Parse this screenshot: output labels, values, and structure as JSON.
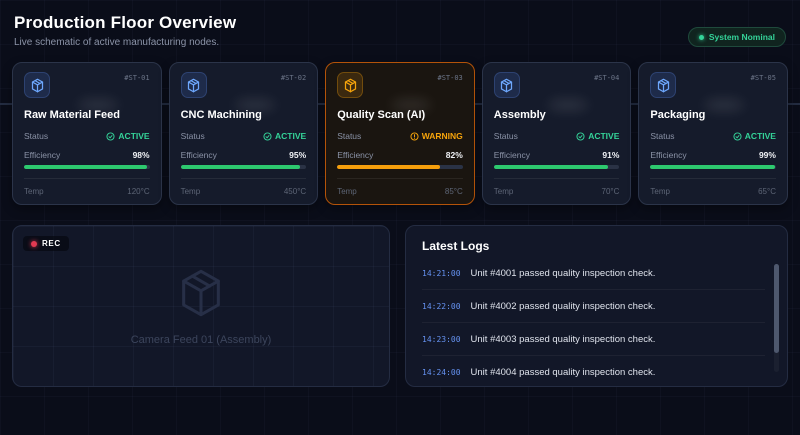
{
  "header": {
    "title": "Production Floor Overview",
    "subtitle": "Live schematic of active manufacturing nodes.",
    "system_badge": "System Nominal"
  },
  "labels": {
    "status": "Status",
    "efficiency": "Efficiency",
    "temp": "Temp"
  },
  "stations": [
    {
      "id": "#ST-01",
      "name": "Raw Material Feed",
      "status": "ACTIVE",
      "state": "active",
      "efficiency": "98%",
      "efficiency_pct": 98,
      "temp": "120°C"
    },
    {
      "id": "#ST-02",
      "name": "CNC Machining",
      "status": "ACTIVE",
      "state": "active",
      "efficiency": "95%",
      "efficiency_pct": 95,
      "temp": "450°C"
    },
    {
      "id": "#ST-03",
      "name": "Quality Scan (AI)",
      "status": "WARNING",
      "state": "warning",
      "efficiency": "82%",
      "efficiency_pct": 82,
      "temp": "85°C"
    },
    {
      "id": "#ST-04",
      "name": "Assembly",
      "status": "ACTIVE",
      "state": "active",
      "efficiency": "91%",
      "efficiency_pct": 91,
      "temp": "70°C"
    },
    {
      "id": "#ST-05",
      "name": "Packaging",
      "status": "ACTIVE",
      "state": "active",
      "efficiency": "99%",
      "efficiency_pct": 99,
      "temp": "65°C"
    }
  ],
  "camera": {
    "rec_label": "REC",
    "caption": "Camera Feed 01 (Assembly)"
  },
  "logs": {
    "title": "Latest Logs",
    "entries": [
      {
        "time": "14:21:00",
        "message": "Unit #4001 passed quality inspection check."
      },
      {
        "time": "14:22:00",
        "message": "Unit #4002 passed quality inspection check."
      },
      {
        "time": "14:23:00",
        "message": "Unit #4003 passed quality inspection check."
      },
      {
        "time": "14:24:00",
        "message": "Unit #4004 passed quality inspection check."
      }
    ]
  },
  "colors": {
    "active": "#34d399",
    "warning": "#f59e0b",
    "accent_blue": "#6ea8fe",
    "rec_red": "#e23a52",
    "background": "#0a0d19"
  }
}
